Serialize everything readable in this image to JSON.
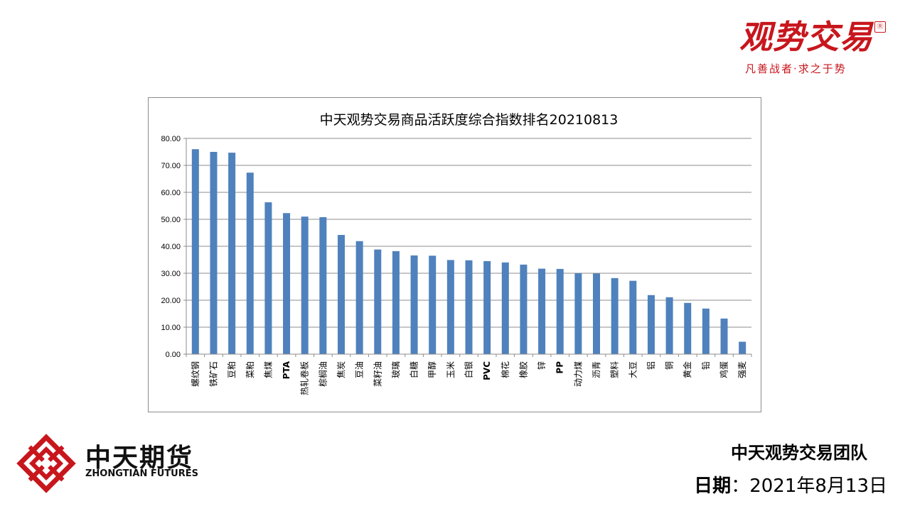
{
  "brand": {
    "name": "观势交易",
    "registered": "Ⓡ",
    "tagline": "凡善战者·求之于势"
  },
  "company": {
    "name_cn": "中天期货",
    "name_en": "ZHONGTIAN FUTURES"
  },
  "footer": {
    "team": "中天观势交易团队",
    "date_label": "日期",
    "date_sep": "：",
    "date_value": "2021年8月13日"
  },
  "colors": {
    "bar": "#4f81bd",
    "brand_red": "#c8161d",
    "grid": "#8c8c8c"
  },
  "chart_data": {
    "type": "bar",
    "title": "中天观势交易商品活跃度综合指数排名20210813",
    "xlabel": "",
    "ylabel": "",
    "ylim": [
      0,
      80
    ],
    "yticks": [
      "0.00",
      "10.00",
      "20.00",
      "30.00",
      "40.00",
      "50.00",
      "60.00",
      "70.00",
      "80.00"
    ],
    "grid": true,
    "legend": "none",
    "categories": [
      "螺纹钢",
      "铁矿石",
      "豆粕",
      "菜粕",
      "焦煤",
      "PTA",
      "热轧卷板",
      "棕榈油",
      "焦炭",
      "豆油",
      "菜籽油",
      "玻璃",
      "白糖",
      "甲醇",
      "玉米",
      "白银",
      "PVC",
      "棉花",
      "橡胶",
      "锌",
      "PP",
      "动力煤",
      "沥青",
      "塑料",
      "大豆",
      "铝",
      "铜",
      "黄金",
      "铅",
      "鸡蛋",
      "强麦"
    ],
    "values": [
      76.0,
      75.0,
      74.7,
      67.3,
      56.3,
      52.3,
      51.0,
      50.8,
      44.2,
      41.9,
      38.8,
      38.2,
      36.6,
      36.5,
      34.9,
      34.8,
      34.5,
      34.0,
      33.2,
      31.7,
      31.6,
      30.0,
      29.9,
      28.2,
      27.2,
      21.9,
      21.1,
      19.0,
      16.9,
      13.2,
      4.6
    ]
  }
}
